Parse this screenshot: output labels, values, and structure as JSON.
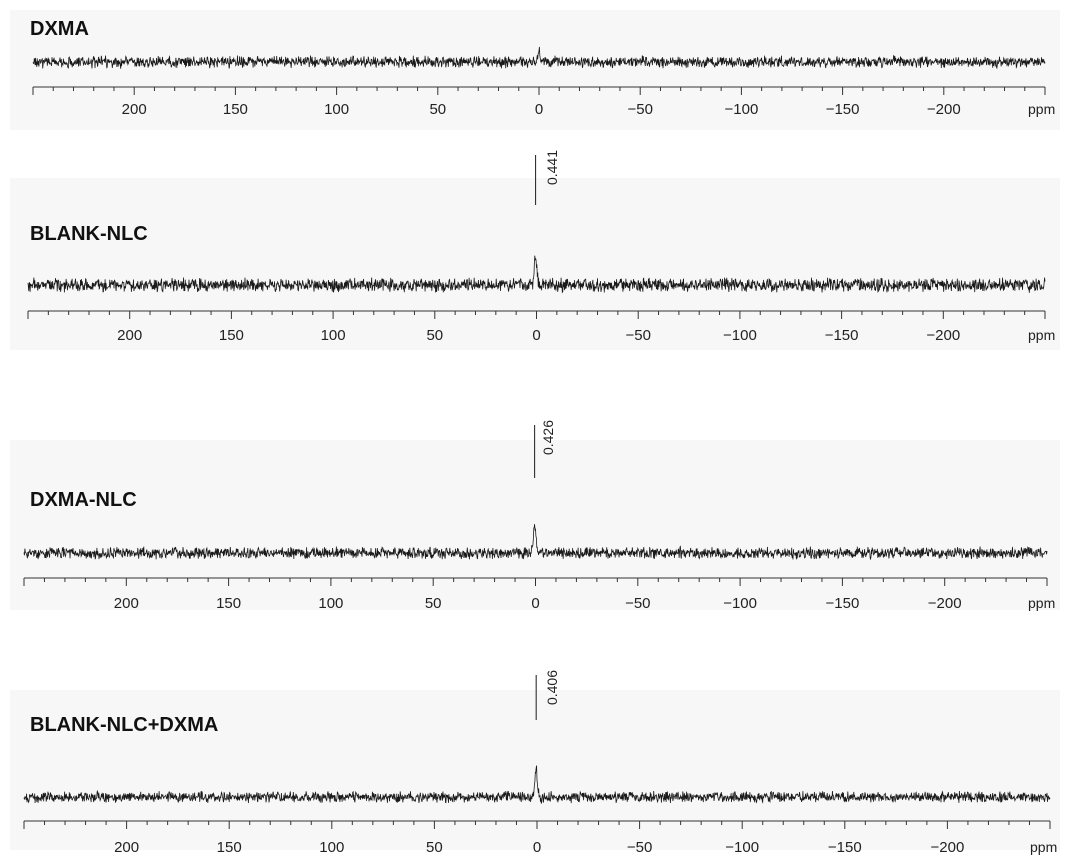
{
  "chart_data": [
    {
      "type": "line",
      "title": "DXMA",
      "xlabel": "ppm",
      "xlim": [
        250,
        -250
      ],
      "x_reversed": true,
      "xticks": [
        200,
        150,
        100,
        50,
        0,
        -50,
        -100,
        -150,
        -200
      ],
      "xtick_labels": [
        "200",
        "150",
        "100",
        "50",
        "0",
        "−50",
        "−100",
        "−150",
        "−200"
      ],
      "series": [
        {
          "peaks": [
            {
              "x": 0,
              "relative_height": 0.5
            }
          ],
          "noise_amplitude": 0.3
        }
      ],
      "annotations": [],
      "grid": false
    },
    {
      "type": "line",
      "title": "BLANK-NLC",
      "xlabel": "ppm",
      "xlim": [
        250,
        -250
      ],
      "x_reversed": true,
      "xticks": [
        200,
        150,
        100,
        50,
        0,
        -50,
        -100,
        -150,
        -200
      ],
      "xtick_labels": [
        "200",
        "150",
        "100",
        "50",
        "0",
        "−50",
        "−100",
        "−150",
        "−200"
      ],
      "series": [
        {
          "peaks": [
            {
              "x": 0.441,
              "relative_height": 1.6
            }
          ],
          "noise_amplitude": 0.35
        }
      ],
      "annotations": [
        {
          "x": 0.441,
          "text": "0.441"
        }
      ],
      "grid": false
    },
    {
      "type": "line",
      "title": "DXMA-NLC",
      "xlabel": "ppm",
      "xlim": [
        250,
        -250
      ],
      "x_reversed": true,
      "xticks": [
        200,
        150,
        100,
        50,
        0,
        -50,
        -100,
        -150,
        -200
      ],
      "xtick_labels": [
        "200",
        "150",
        "100",
        "50",
        "0",
        "−50",
        "−100",
        "−150",
        "−200"
      ],
      "series": [
        {
          "peaks": [
            {
              "x": 0.426,
              "relative_height": 1.6
            }
          ],
          "noise_amplitude": 0.3
        }
      ],
      "annotations": [
        {
          "x": 0.426,
          "text": "0.426"
        }
      ],
      "grid": false
    },
    {
      "type": "line",
      "title": "BLANK-NLC+DXMA",
      "xlabel": "ppm",
      "xlim": [
        250,
        -250
      ],
      "x_reversed": true,
      "xticks": [
        200,
        150,
        100,
        50,
        0,
        -50,
        -100,
        -150,
        -200
      ],
      "xtick_labels": [
        "200",
        "150",
        "100",
        "50",
        "0",
        "−50",
        "−100",
        "−150",
        "−200"
      ],
      "series": [
        {
          "peaks": [
            {
              "x": 0.406,
              "relative_height": 1.5
            }
          ],
          "noise_amplitude": 0.28
        }
      ],
      "annotations": [
        {
          "x": 0.406,
          "text": "0.406"
        }
      ],
      "grid": false
    }
  ],
  "colors": {
    "trace": "#1a1a1a",
    "axis": "#333333",
    "background": "#ffffff",
    "panel_background": "#f7f7f7"
  }
}
